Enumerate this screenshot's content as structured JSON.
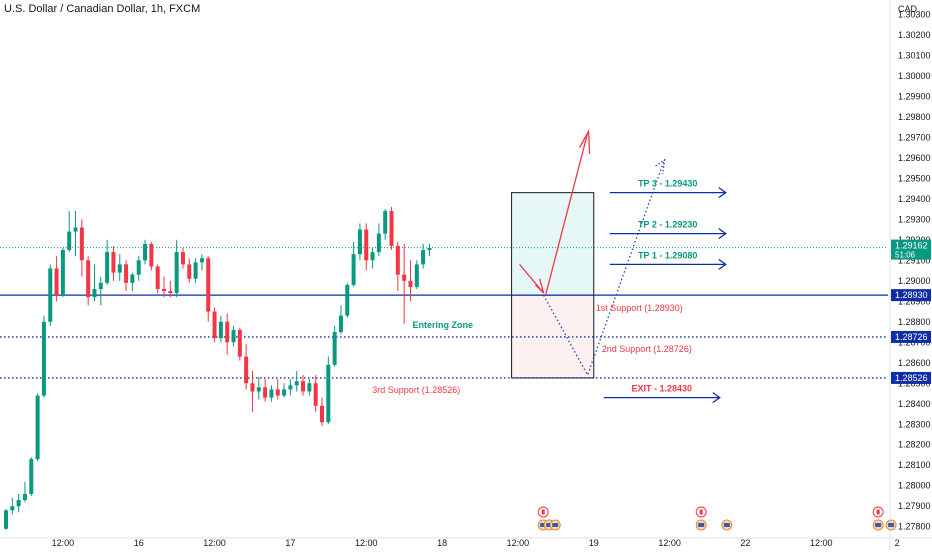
{
  "chart_data": {
    "type": "candlestick",
    "title": "U.S. Dollar / Canadian Dollar, 1h, FXCM",
    "currency": "CAD",
    "y_ticks": [
      1.278,
      1.279,
      1.28,
      1.281,
      1.282,
      1.283,
      1.284,
      1.285,
      1.286,
      1.287,
      1.288,
      1.289,
      1.29,
      1.291,
      1.292,
      1.293,
      1.294,
      1.295,
      1.296,
      1.297,
      1.298,
      1.299,
      1.3,
      1.301,
      1.302,
      1.303
    ],
    "y_tick_labels": [
      "1.27800",
      "1.27900",
      "1.28000",
      "1.28100",
      "1.28200",
      "1.28300",
      "1.28400",
      "1.28500",
      "1.28600",
      "1.28700",
      "1.28800",
      "1.28900",
      "1.29000",
      "1.29100",
      "1.29200",
      "1.29300",
      "1.29400",
      "1.29500",
      "1.29600",
      "1.29700",
      "1.29800",
      "1.29900",
      "1.30000",
      "1.30100",
      "1.30200",
      "1.30300"
    ],
    "ylim": [
      1.27745,
      1.3037
    ],
    "x_labels": [
      {
        "i": 9,
        "text": "12:00"
      },
      {
        "i": 21,
        "text": "16"
      },
      {
        "i": 33,
        "text": "12:00"
      },
      {
        "i": 45,
        "text": "17"
      },
      {
        "i": 57,
        "text": "12:00"
      },
      {
        "i": 69,
        "text": "18"
      },
      {
        "i": 81,
        "text": "12:00"
      },
      {
        "i": 93,
        "text": "19"
      },
      {
        "i": 105,
        "text": "12:00"
      },
      {
        "i": 117,
        "text": "22"
      },
      {
        "i": 129,
        "text": "12:00"
      },
      {
        "i": 141,
        "text": "2"
      }
    ],
    "colors": {
      "up": "#089981",
      "down": "#f23645",
      "support": "#0d2ea6",
      "target": "#0d2ea6",
      "tp_text": "#089981",
      "sr_text": "#f23645"
    },
    "candles": [
      [
        1.2779,
        1.27885,
        1.27785,
        1.2788
      ],
      [
        1.2788,
        1.2794,
        1.2786,
        1.279
      ],
      [
        1.279,
        1.2796,
        1.2787,
        1.2793
      ],
      [
        1.2793,
        1.2802,
        1.2792,
        1.2796
      ],
      [
        1.2796,
        1.2814,
        1.2795,
        1.2813
      ],
      [
        1.2813,
        1.2845,
        1.2812,
        1.2844
      ],
      [
        1.2844,
        1.2883,
        1.2843,
        1.288
      ],
      [
        1.288,
        1.2908,
        1.2878,
        1.2906
      ],
      [
        1.2906,
        1.2912,
        1.289,
        1.2893
      ],
      [
        1.2893,
        1.2916,
        1.2892,
        1.2915
      ],
      [
        1.2915,
        1.2934,
        1.2914,
        1.2924
      ],
      [
        1.2924,
        1.2934,
        1.2912,
        1.2926
      ],
      [
        1.2926,
        1.293,
        1.2902,
        1.291
      ],
      [
        1.291,
        1.2912,
        1.2888,
        1.2892
      ],
      [
        1.2892,
        1.2908,
        1.289,
        1.2896
      ],
      [
        1.2896,
        1.2902,
        1.2888,
        1.2899
      ],
      [
        1.2899,
        1.292,
        1.2898,
        1.2914
      ],
      [
        1.2914,
        1.2917,
        1.29,
        1.2904
      ],
      [
        1.2904,
        1.2913,
        1.29,
        1.2908
      ],
      [
        1.2908,
        1.291,
        1.2895,
        1.2899
      ],
      [
        1.2899,
        1.2904,
        1.2895,
        1.2903
      ],
      [
        1.2903,
        1.2912,
        1.29,
        1.291
      ],
      [
        1.291,
        1.292,
        1.2908,
        1.2918
      ],
      [
        1.2918,
        1.2919,
        1.2905,
        1.2907
      ],
      [
        1.2907,
        1.2908,
        1.2894,
        1.2896
      ],
      [
        1.2896,
        1.2902,
        1.2892,
        1.2895
      ],
      [
        1.2895,
        1.29,
        1.2892,
        1.2894
      ],
      [
        1.2894,
        1.292,
        1.2892,
        1.2914
      ],
      [
        1.2914,
        1.2916,
        1.2906,
        1.2908
      ],
      [
        1.2908,
        1.2911,
        1.2899,
        1.2901
      ],
      [
        1.2901,
        1.2911,
        1.2899,
        1.2909
      ],
      [
        1.2909,
        1.2913,
        1.2905,
        1.2911
      ],
      [
        1.2911,
        1.2912,
        1.288,
        1.2885
      ],
      [
        1.2885,
        1.2887,
        1.287,
        1.2872
      ],
      [
        1.2872,
        1.2883,
        1.287,
        1.288
      ],
      [
        1.288,
        1.2884,
        1.2864,
        1.287
      ],
      [
        1.287,
        1.2878,
        1.2868,
        1.2876
      ],
      [
        1.2876,
        1.2877,
        1.2861,
        1.2863
      ],
      [
        1.2863,
        1.2869,
        1.2847,
        1.285
      ],
      [
        1.285,
        1.2856,
        1.2836,
        1.2846
      ],
      [
        1.2846,
        1.2853,
        1.2842,
        1.2848
      ],
      [
        1.2848,
        1.2852,
        1.2841,
        1.2843
      ],
      [
        1.2843,
        1.2849,
        1.2841,
        1.2847
      ],
      [
        1.2847,
        1.2852,
        1.2842,
        1.2844
      ],
      [
        1.2844,
        1.285,
        1.2843,
        1.2847
      ],
      [
        1.2847,
        1.2852,
        1.2844,
        1.2849
      ],
      [
        1.2849,
        1.2856,
        1.2846,
        1.2851
      ],
      [
        1.2851,
        1.2854,
        1.2844,
        1.2846
      ],
      [
        1.2846,
        1.2852,
        1.2844,
        1.285
      ],
      [
        1.285,
        1.2854,
        1.2836,
        1.2839
      ],
      [
        1.2839,
        1.2843,
        1.2829,
        1.2831
      ],
      [
        1.2831,
        1.2863,
        1.283,
        1.2859
      ],
      [
        1.2859,
        1.2878,
        1.2858,
        1.2875
      ],
      [
        1.2875,
        1.2888,
        1.2874,
        1.2883
      ],
      [
        1.2883,
        1.2899,
        1.2882,
        1.2898
      ],
      [
        1.2898,
        1.2919,
        1.2897,
        1.2913
      ],
      [
        1.2913,
        1.2928,
        1.291,
        1.2925
      ],
      [
        1.2925,
        1.2928,
        1.2905,
        1.291
      ],
      [
        1.291,
        1.2916,
        1.2906,
        1.2914
      ],
      [
        1.2914,
        1.2928,
        1.2912,
        1.2923
      ],
      [
        1.2923,
        1.2935,
        1.292,
        1.2934
      ],
      [
        1.2934,
        1.2936,
        1.2915,
        1.2917
      ],
      [
        1.2917,
        1.2919,
        1.2895,
        1.2903
      ],
      [
        1.2903,
        1.2918,
        1.2879,
        1.29
      ],
      [
        1.29,
        1.291,
        1.289,
        1.2897
      ],
      [
        1.2897,
        1.291,
        1.2896,
        1.2908
      ],
      [
        1.2908,
        1.2918,
        1.2906,
        1.2915
      ],
      [
        1.2915,
        1.2918,
        1.2912,
        1.2916
      ]
    ],
    "current_price": {
      "label": "1.29162",
      "timer": "51:06",
      "value": 1.29162
    },
    "support_lines": [
      {
        "value": 1.2893,
        "label": "1.28930",
        "style": "solid"
      },
      {
        "value": 1.28726,
        "label": "1.28726",
        "style": "dotted"
      },
      {
        "value": 1.28526,
        "label": "1.28526",
        "style": "dotted"
      }
    ],
    "annotations": {
      "tp3": "TP 3 - 1.29430",
      "tp2": "TP 2 - 1.29230",
      "tp1": "TP 1 - 1.29080",
      "exit": "EXIT - 1.28430",
      "support1": "1st Support (1.28930)",
      "support2": "2nd Support (1.28726)",
      "support3": "3rd Support (1.28526)",
      "entering_zone": "Entering Zone"
    },
    "zones": {
      "target": {
        "from_i": 80,
        "to_i": 93,
        "y_low": 1.2893,
        "y_high": 1.2943
      },
      "risk": {
        "from_i": 80,
        "to_i": 93,
        "y_low": 1.28526,
        "y_high": 1.2893
      }
    },
    "events": [
      {
        "i": 85,
        "flags": [
          "ca",
          "us",
          "us",
          "us"
        ]
      },
      {
        "i": 110,
        "flags": [
          "ca",
          "us"
        ]
      },
      {
        "i": 115,
        "flags": [
          "us"
        ]
      },
      {
        "i": 138,
        "flags": [
          "ca",
          "us"
        ]
      },
      {
        "i": 141,
        "flags": [
          "us"
        ]
      }
    ]
  }
}
